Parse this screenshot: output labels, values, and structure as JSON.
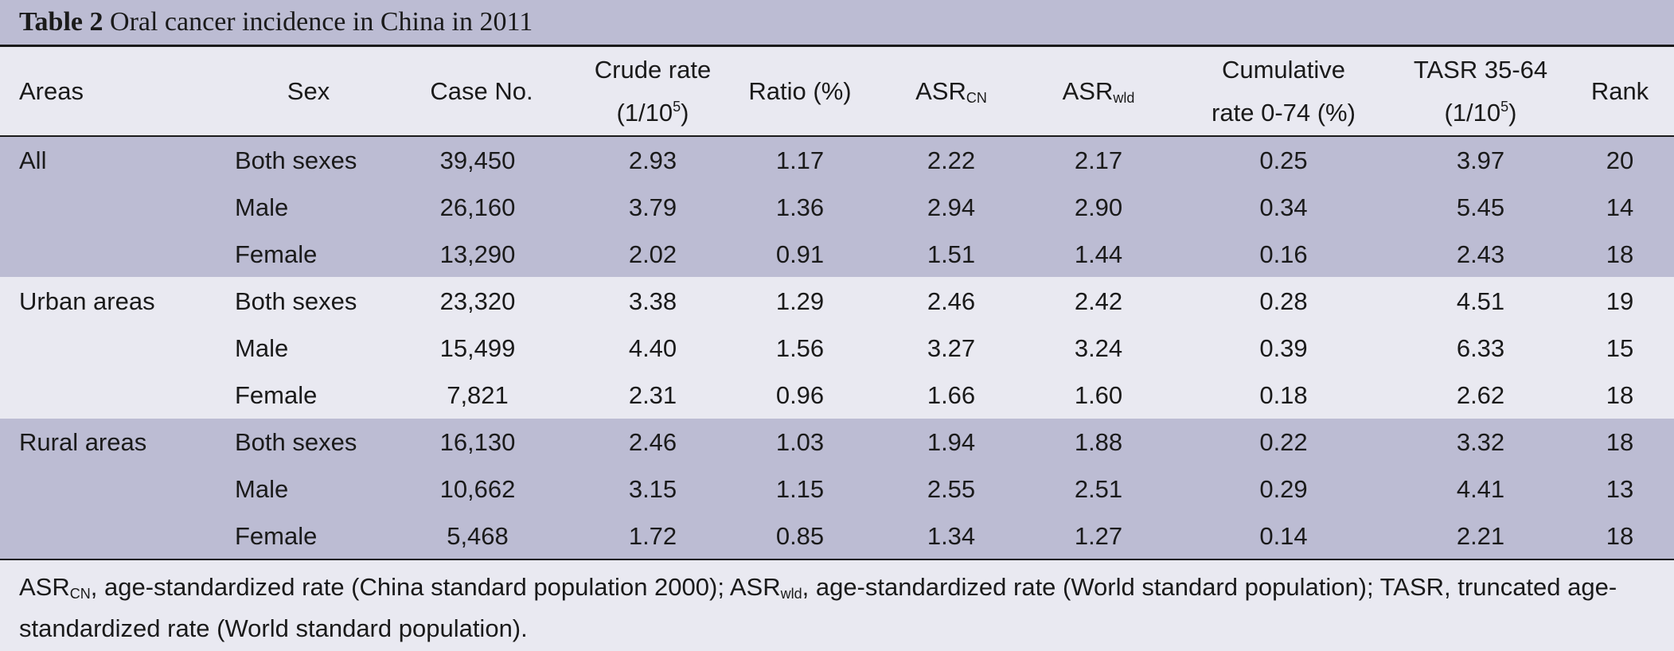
{
  "caption": {
    "label": "Table 2",
    "title": " Oral cancer incidence in China in 2011"
  },
  "headers": {
    "areas": "Areas",
    "sex": "Sex",
    "case_no": "Case No.",
    "crude_rate_line1": "Crude rate",
    "crude_rate_unit_base": "(1/10",
    "crude_rate_unit_exp": "5",
    "crude_rate_unit_close": ")",
    "ratio": "Ratio (%)",
    "asr_cn_base": "ASR",
    "asr_cn_sub": "CN",
    "asr_wld_base": "ASR",
    "asr_wld_sub": "wld",
    "cumulative_line1": "Cumulative",
    "cumulative_line2": "rate 0-74 (%)",
    "tasr_line1": "TASR 35-64",
    "tasr_unit_base": "(1/10",
    "tasr_unit_exp": "5",
    "tasr_unit_close": ")",
    "rank": "Rank"
  },
  "rows": [
    {
      "area": "All",
      "sex": "Both sexes",
      "cases": "39,450",
      "crude": "2.93",
      "ratio": "1.17",
      "asr_cn": "2.22",
      "asr_wld": "2.17",
      "cum": "0.25",
      "tasr": "3.97",
      "rank": "20"
    },
    {
      "area": "",
      "sex": "Male",
      "cases": "26,160",
      "crude": "3.79",
      "ratio": "1.36",
      "asr_cn": "2.94",
      "asr_wld": "2.90",
      "cum": "0.34",
      "tasr": "5.45",
      "rank": "14"
    },
    {
      "area": "",
      "sex": "Female",
      "cases": "13,290",
      "crude": "2.02",
      "ratio": "0.91",
      "asr_cn": "1.51",
      "asr_wld": "1.44",
      "cum": "0.16",
      "tasr": "2.43",
      "rank": "18"
    },
    {
      "area": "Urban areas",
      "sex": "Both sexes",
      "cases": "23,320",
      "crude": "3.38",
      "ratio": "1.29",
      "asr_cn": "2.46",
      "asr_wld": "2.42",
      "cum": "0.28",
      "tasr": "4.51",
      "rank": "19"
    },
    {
      "area": "",
      "sex": "Male",
      "cases": "15,499",
      "crude": "4.40",
      "ratio": "1.56",
      "asr_cn": "3.27",
      "asr_wld": "3.24",
      "cum": "0.39",
      "tasr": "6.33",
      "rank": "15"
    },
    {
      "area": "",
      "sex": "Female",
      "cases": "7,821",
      "crude": "2.31",
      "ratio": "0.96",
      "asr_cn": "1.66",
      "asr_wld": "1.60",
      "cum": "0.18",
      "tasr": "2.62",
      "rank": "18"
    },
    {
      "area": "Rural areas",
      "sex": "Both sexes",
      "cases": "16,130",
      "crude": "2.46",
      "ratio": "1.03",
      "asr_cn": "1.94",
      "asr_wld": "1.88",
      "cum": "0.22",
      "tasr": "3.32",
      "rank": "18"
    },
    {
      "area": "",
      "sex": "Male",
      "cases": "10,662",
      "crude": "3.15",
      "ratio": "1.15",
      "asr_cn": "2.55",
      "asr_wld": "2.51",
      "cum": "0.29",
      "tasr": "4.41",
      "rank": "13"
    },
    {
      "area": "",
      "sex": "Female",
      "cases": "5,468",
      "crude": "1.72",
      "ratio": "0.85",
      "asr_cn": "1.34",
      "asr_wld": "1.27",
      "cum": "0.14",
      "tasr": "2.21",
      "rank": "18"
    }
  ],
  "footnote": {
    "asr1_base": "ASR",
    "asr1_sub": "CN",
    "text1": ", age-standardized rate (China standard population 2000); ",
    "asr2_base": "ASR",
    "asr2_sub": "wld",
    "text2": ", age-standardized rate (World standard population); TASR, truncated age-standardized rate (World standard population)."
  },
  "colors": {
    "band_dark": "#bcbcd3",
    "band_light": "#e9e9f1",
    "rule": "#1a1a1a"
  }
}
